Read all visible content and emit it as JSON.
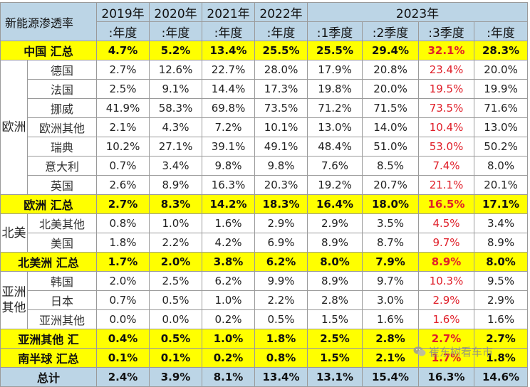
{
  "header": {
    "title": "新能源渗透率",
    "years": [
      "2019年",
      "2020年",
      "2021年",
      "2022年",
      "2023年"
    ],
    "subheaders": [
      ":年度",
      ":年度",
      ":年度",
      ":年度",
      ":1季度",
      ":2季度",
      ":3季度",
      ":年度"
    ]
  },
  "rows": {
    "china_total": {
      "label": "中国 汇总",
      "values": [
        "4.7%",
        "5.2%",
        "13.4%",
        "25.5%",
        "25.5%",
        "29.4%",
        "32.1%",
        "28.3%"
      ]
    },
    "europe_region": "欧洲",
    "germany": {
      "label": "德国",
      "values": [
        "2.7%",
        "12.6%",
        "22.7%",
        "28.0%",
        "17.9%",
        "20.8%",
        "23.4%",
        "20.0%"
      ]
    },
    "france": {
      "label": "法国",
      "values": [
        "2.5%",
        "9.1%",
        "14.4%",
        "17.3%",
        "19.8%",
        "20.0%",
        "19.5%",
        "19.9%"
      ]
    },
    "norway": {
      "label": "挪威",
      "values": [
        "41.9%",
        "58.3%",
        "69.8%",
        "73.5%",
        "71.2%",
        "71.5%",
        "73.5%",
        "71.6%"
      ]
    },
    "europe_other": {
      "label": "欧洲其他",
      "values": [
        "2.1%",
        "4.3%",
        "7.2%",
        "10.1%",
        "13.0%",
        "14.0%",
        "10.4%",
        "13.0%"
      ]
    },
    "sweden": {
      "label": "瑞典",
      "values": [
        "10.2%",
        "27.1%",
        "39.1%",
        "49.1%",
        "48.4%",
        "51.0%",
        "53.0%",
        "50.2%"
      ]
    },
    "italy": {
      "label": "意大利",
      "values": [
        "0.7%",
        "3.4%",
        "9.8%",
        "9.8%",
        "7.6%",
        "8.5%",
        "7.4%",
        "8.0%"
      ]
    },
    "uk": {
      "label": "英国",
      "values": [
        "2.6%",
        "8.9%",
        "16.3%",
        "20.3%",
        "19.2%",
        "20.7%",
        "21.1%",
        "20.1%"
      ]
    },
    "europe_total": {
      "label": "欧洲 汇总",
      "values": [
        "2.7%",
        "8.3%",
        "14.2%",
        "18.3%",
        "16.4%",
        "18.0%",
        "16.5%",
        "17.1%"
      ]
    },
    "na_region": "北美",
    "na_other": {
      "label": "北美其他",
      "values": [
        "0.8%",
        "1.0%",
        "1.6%",
        "2.9%",
        "2.9%",
        "3.5%",
        "4.5%",
        "3.4%"
      ]
    },
    "usa": {
      "label": "美国",
      "values": [
        "1.8%",
        "2.2%",
        "4.2%",
        "6.9%",
        "8.9%",
        "8.7%",
        "9.7%",
        "8.9%"
      ]
    },
    "na_total": {
      "label": "北美洲 汇总",
      "values": [
        "1.7%",
        "2.0%",
        "3.8%",
        "6.2%",
        "8.0%",
        "7.9%",
        "8.9%",
        "8.0%"
      ]
    },
    "asia_region": "亚洲其他",
    "korea": {
      "label": "韩国",
      "values": [
        "2.0%",
        "2.5%",
        "6.2%",
        "9.9%",
        "8.9%",
        "9.7%",
        "10.3%",
        "9.5%"
      ]
    },
    "japan": {
      "label": "日本",
      "values": [
        "0.7%",
        "0.5%",
        "1.0%",
        "2.2%",
        "2.8%",
        "3.0%",
        "2.9%",
        "2.9%"
      ]
    },
    "asia_other": {
      "label": "亚洲其他",
      "values": [
        "0.0%",
        "0.0%",
        "0.2%",
        "0.5%",
        "1.5%",
        "1.6%",
        "1.6%",
        "1.6%"
      ]
    },
    "asia_other_total": {
      "label": "亚洲其他 汇",
      "values": [
        "0.4%",
        "0.5%",
        "1.0%",
        "1.8%",
        "2.5%",
        "2.8%",
        "2.7%",
        "2.7%"
      ]
    },
    "south_total": {
      "label": "南半球 汇总",
      "values": [
        "0.1%",
        "0.1%",
        "0.2%",
        "0.8%",
        "1.5%",
        "2.1%",
        "1.7%",
        "1.8%"
      ]
    },
    "grand_total": {
      "label": "总计",
      "values": [
        "2.4%",
        "3.9%",
        "8.1%",
        "13.4%",
        "13.1%",
        "15.4%",
        "16.3%",
        "14.6%"
      ]
    }
  },
  "watermark": {
    "text": "崔东树看车市",
    "icon": "wechat-icon"
  },
  "colors": {
    "header_bg": "#bcd5e6",
    "total_bg": "#ffff00",
    "highlight_text": "#e0202a"
  }
}
